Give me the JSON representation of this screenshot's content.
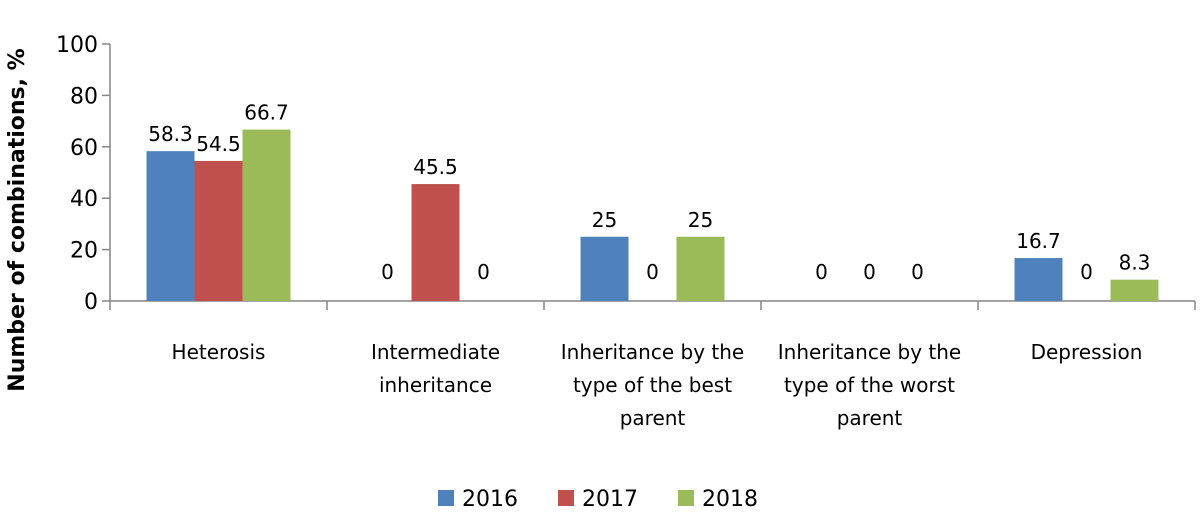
{
  "chart_data": {
    "type": "bar",
    "ylabel": "Number of combinations, %",
    "ylim": [
      0,
      100
    ],
    "yticks": [
      0,
      20,
      40,
      60,
      80,
      100
    ],
    "grid": false,
    "legend_position": "bottom",
    "categories": [
      [
        "Heterosis"
      ],
      [
        "Intermediate",
        "inheritance"
      ],
      [
        "Inheritance by the",
        "type of the best",
        "parent"
      ],
      [
        "Inheritance by the",
        "type of the worst",
        "parent"
      ],
      [
        "Depression"
      ]
    ],
    "series": [
      {
        "name": "2016",
        "color": "#4F81BD",
        "values": [
          58.3,
          0,
          25,
          0,
          16.7
        ]
      },
      {
        "name": "2017",
        "color": "#C0504D",
        "values": [
          54.5,
          45.5,
          0,
          0,
          0
        ]
      },
      {
        "name": "2018",
        "color": "#9BBB59",
        "values": [
          66.7,
          0,
          25,
          0,
          8.3
        ]
      }
    ],
    "data_labels": [
      [
        "58.3",
        "0",
        "25",
        "0",
        "16.7"
      ],
      [
        "54.5",
        "45.5",
        "0",
        "0",
        "0"
      ],
      [
        "66.7",
        "0",
        "25",
        "0",
        "8.3"
      ]
    ]
  }
}
